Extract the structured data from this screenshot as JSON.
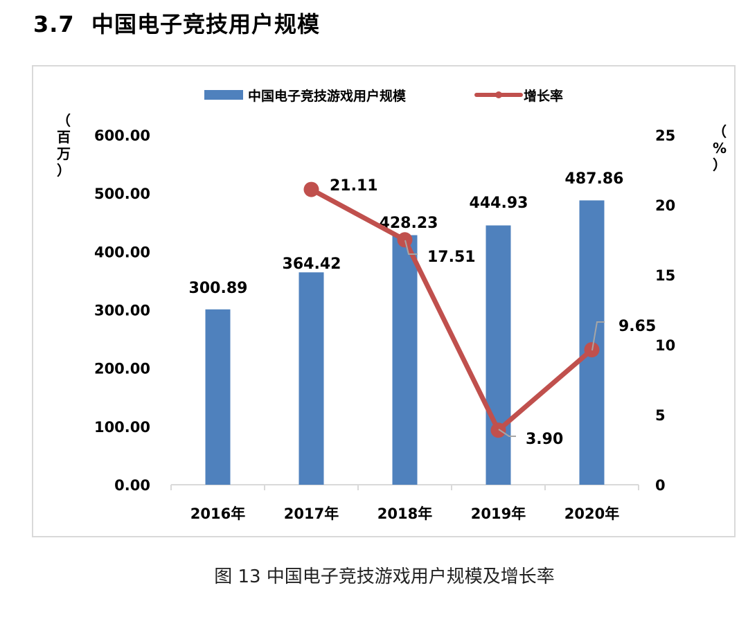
{
  "section": {
    "number": "3.7",
    "title": "中国电子竞技用户规模"
  },
  "caption": "图 13  中国电子竞技游戏用户规模及增长率",
  "colors": {
    "bar": "#4f81bd",
    "line": "#c0504d",
    "leader": "#a6a6a6",
    "axis": "#d9d9d9"
  },
  "legend": [
    {
      "label": "中国电子竞技游戏用户规模",
      "type": "bar"
    },
    {
      "label": "增长率",
      "type": "line"
    }
  ],
  "axes": {
    "left_unit": [
      "（",
      "百",
      "万",
      "）"
    ],
    "right_unit": [
      "（",
      "%",
      "）"
    ],
    "left_ticks": [
      "0.00",
      "100.00",
      "200.00",
      "300.00",
      "400.00",
      "500.00",
      "600.00"
    ],
    "right_ticks": [
      "0",
      "5",
      "10",
      "15",
      "20",
      "25"
    ]
  },
  "chart_data": {
    "type": "bar",
    "title": "中国电子竞技游戏用户规模及增长率",
    "categories": [
      "2016年",
      "2017年",
      "2018年",
      "2019年",
      "2020年"
    ],
    "series": [
      {
        "name": "中国电子竞技游戏用户规模",
        "type": "bar",
        "axis": "left",
        "values": [
          300.89,
          364.42,
          428.23,
          444.93,
          487.86
        ],
        "labels": [
          "300.89",
          "364.42",
          "428.23",
          "444.93",
          "487.86"
        ]
      },
      {
        "name": "增长率",
        "type": "line",
        "axis": "right",
        "values": [
          null,
          21.11,
          17.51,
          3.9,
          9.65
        ],
        "labels": [
          "",
          "21.11",
          "17.51",
          "3.90",
          "9.65"
        ]
      }
    ],
    "xlabel": "",
    "ylabel": "百万",
    "y2label": "%",
    "ylim": [
      0,
      600
    ],
    "y2lim": [
      0,
      25
    ],
    "grid": false,
    "legend_position": "top"
  }
}
